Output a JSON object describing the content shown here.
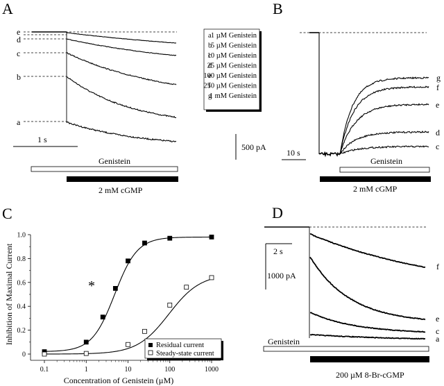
{
  "panels": {
    "A": {
      "letter": "A",
      "trace_labels": [
        "e",
        "d",
        "c",
        "b",
        "a"
      ],
      "time_scale": "1 s",
      "bar_genistein": "Genistein",
      "bar_cgmp": "2 mM cGMP"
    },
    "legend": {
      "rows": [
        {
          "key": "a",
          "text": "1 µM Genistein"
        },
        {
          "key": "b",
          "text": "5 µM Genistein"
        },
        {
          "key": "c",
          "text": "10 µM Genistein"
        },
        {
          "key": "d",
          "text": "25 µM Genistein"
        },
        {
          "key": "e",
          "text": "100 µM Genistein"
        },
        {
          "key": "f",
          "text": "250 µM Genistein"
        },
        {
          "key": "g",
          "text": "1 mM Genistein"
        }
      ],
      "current_scale": "500 pA"
    },
    "B": {
      "letter": "B",
      "trace_labels": [
        "g",
        "f",
        "e",
        "d",
        "c"
      ],
      "time_scale": "10 s",
      "bar_genistein": "Genistein",
      "bar_cgmp": "2 mM cGMP"
    },
    "D": {
      "letter": "D",
      "trace_labels": [
        "f",
        "e",
        "c",
        "a"
      ],
      "time_scale": "2 s",
      "current_scale": "1000 pA",
      "bar_genistein": "Genistein",
      "bar_cgmp": "200 µM 8-Br-cGMP"
    }
  },
  "chart_data": {
    "type": "scatter",
    "panel": "C",
    "letter": "C",
    "xlabel": "Concentration  of  Genistein (µM)",
    "ylabel": "Inhibition  of  Maximal  Current",
    "xscale": "log",
    "xlim": [
      0.1,
      1000
    ],
    "ylim": [
      0,
      1.0
    ],
    "xticks": [
      0.1,
      1,
      10,
      100,
      1000
    ],
    "xtick_labels": [
      "0.1",
      "1",
      "10",
      "100",
      "1000"
    ],
    "yticks": [
      0,
      0.2,
      0.4,
      0.6,
      0.8,
      1.0
    ],
    "ytick_labels": [
      "0",
      "0.2",
      "0.4",
      "0.6",
      "0.8",
      "1.0"
    ],
    "annotation": "*",
    "legend_position": "bottom-right",
    "series": [
      {
        "name": "Residual current",
        "marker": "filled-square",
        "x": [
          0.1,
          1,
          2.5,
          5,
          10,
          25,
          100,
          1000
        ],
        "y": [
          0.02,
          0.1,
          0.31,
          0.55,
          0.78,
          0.93,
          0.97,
          0.98
        ],
        "fit": {
          "bottom": 0.02,
          "top": 0.98,
          "ec50": 4.8,
          "hill": 1.6
        }
      },
      {
        "name": "Steady-state current",
        "marker": "open-square",
        "x": [
          0.1,
          1,
          10,
          25,
          100,
          250,
          1000
        ],
        "y": [
          0.0,
          0.005,
          0.08,
          0.19,
          0.41,
          0.56,
          0.64
        ],
        "fit": {
          "bottom": 0.0,
          "top": 0.67,
          "ec50": 95,
          "hill": 1.15
        }
      }
    ]
  }
}
